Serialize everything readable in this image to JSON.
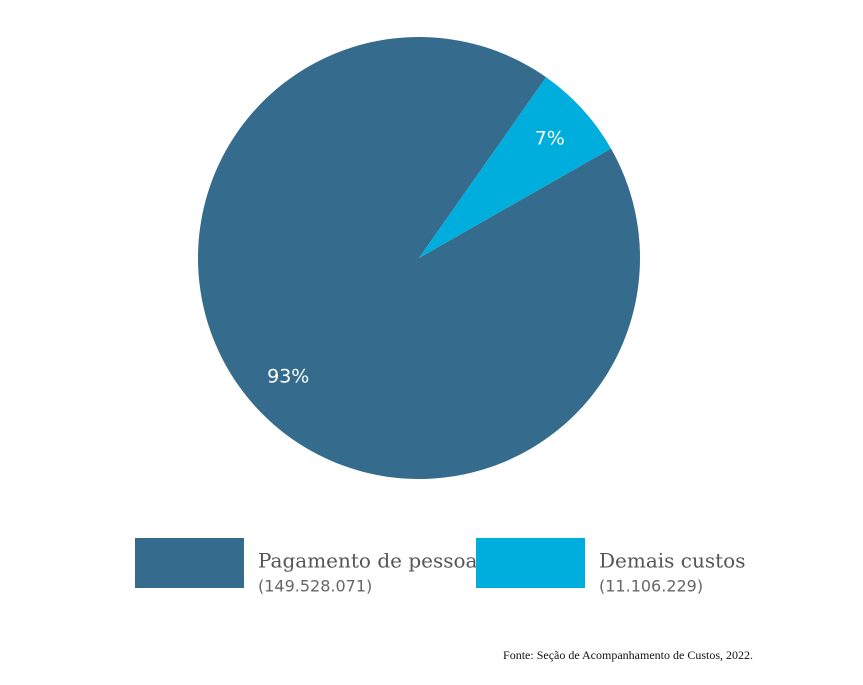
{
  "chart_data": {
    "type": "pie",
    "categories": [
      "Pagamento de pessoal",
      "Demais custos"
    ],
    "values": [
      93,
      7
    ],
    "value_labels": [
      "93%",
      "7%"
    ],
    "amount_labels": [
      "(149.528.071)",
      "(11.106.229)"
    ],
    "colors": [
      "#356b8c",
      "#00aede"
    ],
    "source": "Fonte:  Seção de Acompanhamento de Custos, 2022."
  }
}
